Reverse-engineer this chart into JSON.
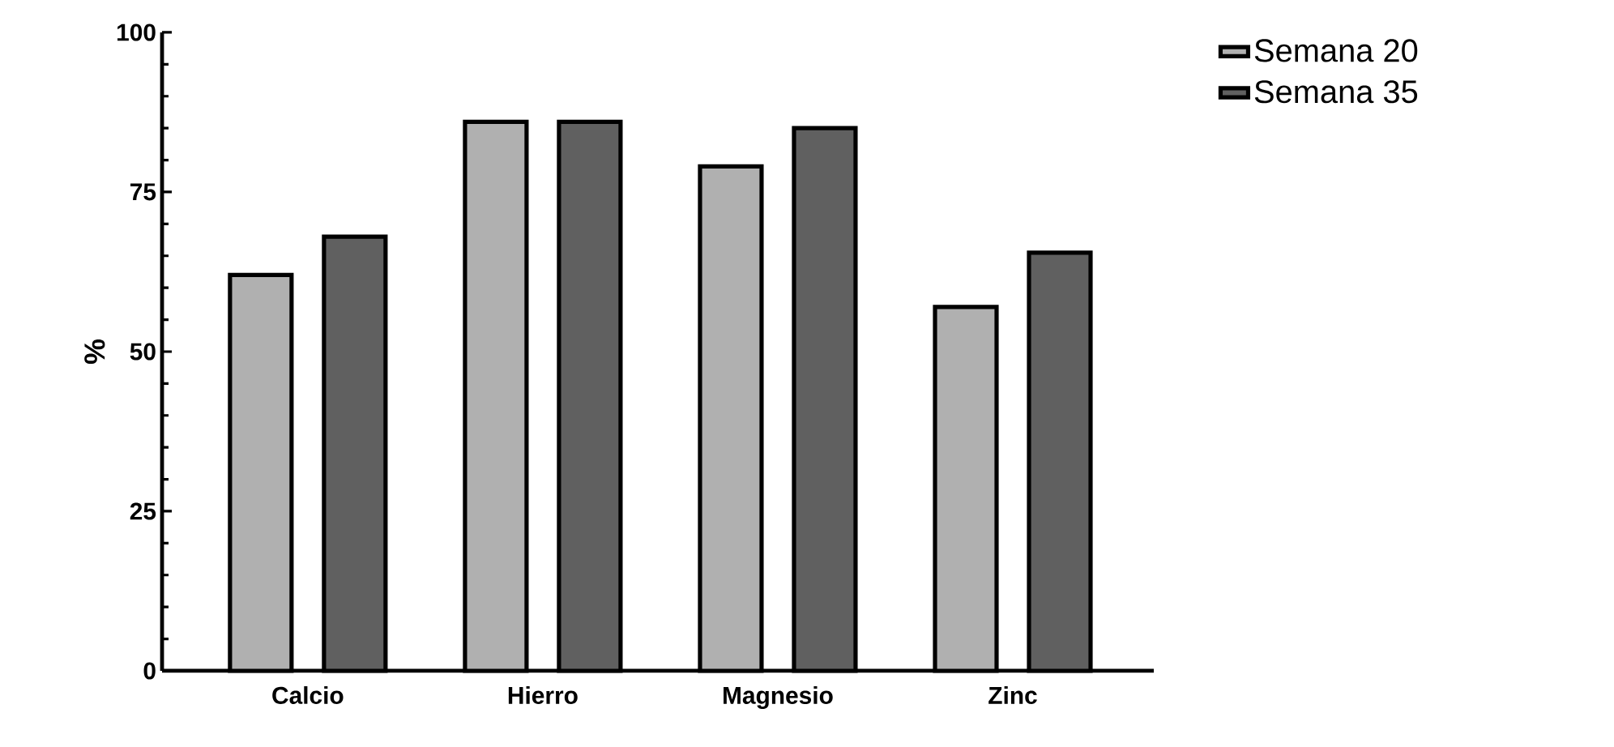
{
  "chart_data": {
    "type": "bar",
    "ylabel": "%",
    "categories": [
      "Calcio",
      "Hierro",
      "Magnesio",
      "Zinc"
    ],
    "series": [
      {
        "name": "Semana 20",
        "color": "#b0b0b0",
        "values": [
          62,
          86,
          79,
          57
        ]
      },
      {
        "name": "Semana 35",
        "color": "#606060",
        "values": [
          68,
          86,
          85,
          65.5
        ]
      }
    ],
    "ylim": [
      0,
      100
    ],
    "yticks": [
      0,
      25,
      50,
      75,
      100
    ],
    "grid": false,
    "legend": "top right"
  }
}
